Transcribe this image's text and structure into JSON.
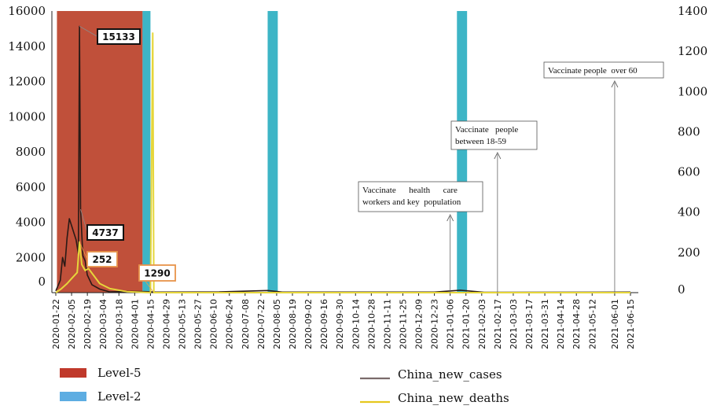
{
  "chart_data": {
    "type": "line",
    "x": [
      "2020-01-22",
      "2020-02-05",
      "2020-02-19",
      "2020-03-04",
      "2020-03-18",
      "2020-04-01",
      "2020-04-15",
      "2020-04-29",
      "2020-05-13",
      "2020-05-27",
      "2020-06-10",
      "2020-06-24",
      "2020-07-08",
      "2020-07-22",
      "2020-08-05",
      "2020-08-19",
      "2020-09-02",
      "2020-09-16",
      "2020-09-30",
      "2020-10-14",
      "2020-10-28",
      "2020-11-11",
      "2020-11-25",
      "2020-12-09",
      "2020-12-23",
      "2021-01-06",
      "2021-01-20",
      "2021-02-03",
      "2021-02-17",
      "2021-03-03",
      "2021-03-17",
      "2021-03-31",
      "2021-04-14",
      "2021-04-28",
      "2021-05-12",
      "2021-06-01",
      "2021-06-15"
    ],
    "y_left_ticks": [
      "16000",
      "14000",
      "12000",
      "10000",
      "8000",
      "6000",
      "4000",
      "2000",
      "0"
    ],
    "y_right_ticks": [
      "1400",
      "1200",
      "1000",
      "800",
      "600",
      "400",
      "200",
      "0"
    ],
    "ylim_left": [
      0,
      16000
    ],
    "ylim_right": [
      0,
      1400
    ],
    "series": [
      {
        "name": "China_new_cases",
        "axis": "left",
        "color": "#2a1a16",
        "points": [
          [
            "2020-01-22",
            100
          ],
          [
            "2020-01-26",
            700
          ],
          [
            "2020-01-28",
            2000
          ],
          [
            "2020-01-30",
            1500
          ],
          [
            "2020-02-01",
            3100
          ],
          [
            "2020-02-03",
            4200
          ],
          [
            "2020-02-05",
            3800
          ],
          [
            "2020-02-07",
            3400
          ],
          [
            "2020-02-09",
            3000
          ],
          [
            "2020-02-11",
            2200
          ],
          [
            "2020-02-12",
            15133
          ],
          [
            "2020-02-13",
            4737
          ],
          [
            "2020-02-15",
            2100
          ],
          [
            "2020-02-17",
            1800
          ],
          [
            "2020-02-19",
            1000
          ],
          [
            "2020-02-23",
            450
          ],
          [
            "2020-03-01",
            200
          ],
          [
            "2020-03-10",
            40
          ],
          [
            "2020-03-25",
            70
          ],
          [
            "2020-04-10",
            60
          ],
          [
            "2020-04-20",
            30
          ],
          [
            "2020-06-15",
            40
          ],
          [
            "2020-07-28",
            120
          ],
          [
            "2020-08-10",
            30
          ],
          [
            "2020-12-23",
            30
          ],
          [
            "2021-01-15",
            140
          ],
          [
            "2021-02-05",
            20
          ],
          [
            "2021-06-15",
            30
          ]
        ]
      },
      {
        "name": "China_new_deaths",
        "axis": "right",
        "color": "#e6d63a",
        "points": [
          [
            "2020-01-22",
            0
          ],
          [
            "2020-01-27",
            20
          ],
          [
            "2020-02-01",
            45
          ],
          [
            "2020-02-05",
            70
          ],
          [
            "2020-02-10",
            100
          ],
          [
            "2020-02-12",
            252
          ],
          [
            "2020-02-14",
            140
          ],
          [
            "2020-02-17",
            110
          ],
          [
            "2020-02-20",
            120
          ],
          [
            "2020-02-24",
            90
          ],
          [
            "2020-03-01",
            45
          ],
          [
            "2020-03-10",
            20
          ],
          [
            "2020-03-25",
            5
          ],
          [
            "2020-04-15",
            0
          ],
          [
            "2020-04-17",
            1290
          ],
          [
            "2020-04-18",
            0
          ],
          [
            "2021-06-15",
            0
          ]
        ]
      }
    ],
    "levels": [
      {
        "name": "Level-5",
        "color": "#c0503a",
        "start": "2020-01-23",
        "end": "2020-04-08"
      },
      {
        "name": "Level-2",
        "color": "#3db5c6",
        "start": "2020-04-08",
        "end": "2020-04-15"
      },
      {
        "name": "Level-2",
        "color": "#3db5c6",
        "start": "2020-07-28",
        "end": "2020-08-06"
      },
      {
        "name": "Level-2",
        "color": "#3db5c6",
        "start": "2021-01-12",
        "end": "2021-01-21"
      }
    ],
    "data_labels": [
      {
        "text": "15133",
        "style": "dark"
      },
      {
        "text": "4737",
        "style": "dark"
      },
      {
        "text": "252",
        "style": "orange"
      },
      {
        "text": "1290",
        "style": "orange"
      }
    ],
    "annotations": [
      {
        "lines": [
          "Vaccinate      health      care",
          "workers and key  population"
        ],
        "date": "2021-01-06"
      },
      {
        "lines": [
          "Vaccinate   people",
          "between 18-59"
        ],
        "date": "2021-02-17"
      },
      {
        "lines": [
          "Vaccinate people  over 60"
        ],
        "date": "2021-06-01"
      }
    ],
    "legend": [
      {
        "label": "Level-5",
        "kind": "box",
        "color": "#c0392b"
      },
      {
        "label": "Level-2",
        "kind": "box",
        "color": "#5dade2"
      },
      {
        "label": "China_new_cases",
        "kind": "line",
        "color": "#7a6a6a"
      },
      {
        "label": "China_new_deaths",
        "kind": "line",
        "color": "#e6c81e"
      }
    ],
    "legend_position": "bottom",
    "grid": false
  }
}
